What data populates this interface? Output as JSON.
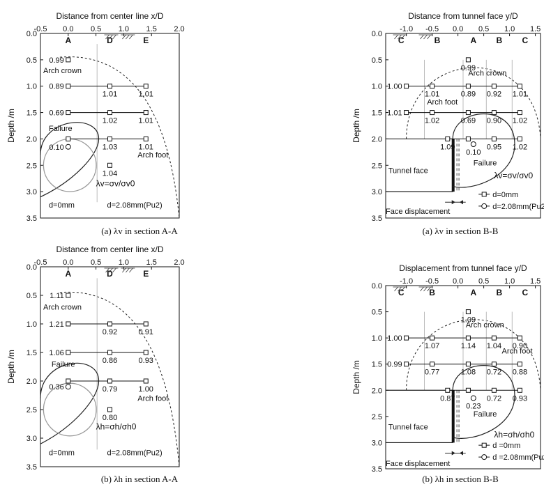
{
  "figure": {
    "captions": [
      "(a) λv in section A-A",
      "(a) λv in section B-B",
      "(b) λh in section A-A",
      "(b) λh in section B-B"
    ]
  },
  "chart_data": [
    {
      "type": "scatter",
      "panel": "a-AA",
      "caption": "(a) λv in section A-A",
      "top_axis_label": "Distance from center line x/D",
      "ylabel": "Depth /m",
      "xlim": [
        -0.5,
        2.0
      ],
      "ylim": [
        3.5,
        0.0
      ],
      "xticks": [
        "-0.5",
        "0.0",
        "0.5",
        "1.0",
        "1.5",
        "2.0"
      ],
      "yticks": [
        "0.0",
        "0.5",
        "1.0",
        "1.5",
        "2.0",
        "2.5",
        "3.0",
        "3.5"
      ],
      "y_inverted": true,
      "column_labels": [
        {
          "text": "A",
          "x": 0.0
        },
        {
          "text": "D",
          "x": 0.75
        },
        {
          "text": "E",
          "x": 1.4
        }
      ],
      "series": [
        {
          "name": "d=0mm",
          "marker": "square",
          "points": [
            {
              "x": 0.0,
              "y": 0.5,
              "label": "0.99"
            },
            {
              "x": 0.0,
              "y": 1.0,
              "label": "0.89"
            },
            {
              "x": 0.75,
              "y": 1.0,
              "label": "1.01"
            },
            {
              "x": 1.4,
              "y": 1.0,
              "label": "1.01"
            },
            {
              "x": 0.0,
              "y": 1.5,
              "label": "0.69"
            },
            {
              "x": 0.75,
              "y": 1.5,
              "label": "1.02"
            },
            {
              "x": 1.4,
              "y": 1.5,
              "label": "1.01"
            },
            {
              "x": 0.0,
              "y": 2.0,
              "label": ""
            },
            {
              "x": 0.75,
              "y": 2.0,
              "label": "1.03"
            },
            {
              "x": 1.4,
              "y": 2.0,
              "label": "1.01"
            },
            {
              "x": 0.75,
              "y": 2.5,
              "label": "1.04"
            }
          ]
        },
        {
          "name": "d=2.08mm(Pu2)",
          "marker": "circle",
          "points": [
            {
              "x": 0.0,
              "y": 2.15,
              "label": "0.10"
            }
          ]
        }
      ],
      "annotations": [
        "Arch crown",
        "Failure",
        "Arch foot"
      ],
      "formula": "λv=σv/σv0",
      "legend_items": [
        "d=0mm",
        "d=2.08mm(Pu2)"
      ]
    },
    {
      "type": "scatter",
      "panel": "a-BB",
      "caption": "(a) λv in section B-B",
      "top_axis_label": "Distance from tunnel face y/D",
      "ylabel": "Depth /m",
      "xlim": [
        -1.4,
        1.6
      ],
      "ylim": [
        3.5,
        0.0
      ],
      "xticks": [
        "-1.0",
        "-0.5",
        "0.0",
        "0.5",
        "1.0",
        "1.5"
      ],
      "yticks": [
        "0.0",
        "0.5",
        "1.0",
        "1.5",
        "2.0",
        "2.5",
        "3.0",
        "3.5"
      ],
      "y_inverted": true,
      "column_labels": [
        {
          "text": "C",
          "x": -1.1
        },
        {
          "text": "B",
          "x": -0.4
        },
        {
          "text": "A",
          "x": 0.3
        },
        {
          "text": "B",
          "x": 0.8
        },
        {
          "text": "C",
          "x": 1.3
        }
      ],
      "series": [
        {
          "name": "d=0mm",
          "marker": "square",
          "points": [
            {
              "x": 0.2,
              "y": 0.5,
              "label": "0.99"
            },
            {
              "x": -1.0,
              "y": 1.0,
              "label": "1.00"
            },
            {
              "x": -0.5,
              "y": 1.0,
              "label": "1.01"
            },
            {
              "x": 0.2,
              "y": 1.0,
              "label": "0.89"
            },
            {
              "x": 0.7,
              "y": 1.0,
              "label": "0.92"
            },
            {
              "x": 1.2,
              "y": 1.0,
              "label": "1.01"
            },
            {
              "x": -1.0,
              "y": 1.5,
              "label": "1.01"
            },
            {
              "x": -0.5,
              "y": 1.5,
              "label": "1.02"
            },
            {
              "x": 0.2,
              "y": 1.5,
              "label": "0.69"
            },
            {
              "x": 0.7,
              "y": 1.5,
              "label": "0.90"
            },
            {
              "x": 1.2,
              "y": 1.5,
              "label": "1.02"
            },
            {
              "x": -0.2,
              "y": 2.0,
              "label": "1.09"
            },
            {
              "x": 0.2,
              "y": 2.0,
              "label": ""
            },
            {
              "x": 0.7,
              "y": 2.0,
              "label": "0.95"
            },
            {
              "x": 1.2,
              "y": 2.0,
              "label": "1.02"
            }
          ]
        },
        {
          "name": "d=2.08mm(Pu2)",
          "marker": "circle",
          "points": [
            {
              "x": 0.3,
              "y": 2.1,
              "label": "0.10"
            }
          ]
        }
      ],
      "annotations": [
        "Arch crown",
        "Arch foot",
        "Failure",
        "Tunnel face",
        "Face displacement"
      ],
      "formula": "λv=σv/σv0",
      "legend_items": [
        "d=0mm",
        "d=2.08mm(Pu2)"
      ]
    },
    {
      "type": "scatter",
      "panel": "b-AA",
      "caption": "(b) λh in section A-A",
      "top_axis_label": "Distance from center line x/D",
      "ylabel": "Depth /m",
      "xlim": [
        -0.5,
        2.0
      ],
      "ylim": [
        3.5,
        0.0
      ],
      "xticks": [
        "-0.5",
        "0.0",
        "0.5",
        "1.0",
        "1.5",
        "2.0"
      ],
      "yticks": [
        "0.0",
        "0.5",
        "1.0",
        "1.5",
        "2.0",
        "2.5",
        "3.0",
        "3.5"
      ],
      "y_inverted": true,
      "column_labels": [
        {
          "text": "A",
          "x": 0.0
        },
        {
          "text": "D",
          "x": 0.75
        },
        {
          "text": "E",
          "x": 1.4
        }
      ],
      "series": [
        {
          "name": "d=0mm",
          "marker": "square",
          "points": [
            {
              "x": 0.0,
              "y": 0.5,
              "label": "1.11"
            },
            {
              "x": 0.0,
              "y": 1.0,
              "label": "1.21"
            },
            {
              "x": 0.75,
              "y": 1.0,
              "label": "0.92"
            },
            {
              "x": 1.4,
              "y": 1.0,
              "label": "0.91"
            },
            {
              "x": 0.0,
              "y": 1.5,
              "label": "1.06"
            },
            {
              "x": 0.75,
              "y": 1.5,
              "label": "0.86"
            },
            {
              "x": 1.4,
              "y": 1.5,
              "label": "0.93"
            },
            {
              "x": 0.0,
              "y": 2.0,
              "label": ""
            },
            {
              "x": 0.75,
              "y": 2.0,
              "label": "0.79"
            },
            {
              "x": 1.4,
              "y": 2.0,
              "label": "1.00"
            },
            {
              "x": 0.75,
              "y": 2.5,
              "label": "0.80"
            }
          ]
        },
        {
          "name": "d=2.08mm(Pu2)",
          "marker": "circle",
          "points": [
            {
              "x": 0.0,
              "y": 2.1,
              "label": "0.36"
            }
          ]
        }
      ],
      "annotations": [
        "Arch crown",
        "Failure",
        "Arch foot"
      ],
      "formula": "λh=σh/σh0",
      "legend_items": [
        "d=0mm",
        "d=2.08mm(Pu2)"
      ]
    },
    {
      "type": "scatter",
      "panel": "b-BB",
      "caption": "(b) λh in section B-B",
      "top_axis_label": "Displacement from tunnel face y/D",
      "ylabel": "Depth /m",
      "xlim": [
        -1.4,
        1.6
      ],
      "ylim": [
        3.5,
        0.0
      ],
      "xticks": [
        "-1.0",
        "-0.5",
        "0.0",
        "0.5",
        "1.0",
        "1.5"
      ],
      "yticks": [
        "0.0",
        "0.5",
        "1.0",
        "1.5",
        "2.0",
        "2.5",
        "3.0",
        "3.5"
      ],
      "y_inverted": true,
      "column_labels": [
        {
          "text": "C",
          "x": -1.1
        },
        {
          "text": "B",
          "x": -0.5
        },
        {
          "text": "A",
          "x": 0.3
        },
        {
          "text": "B",
          "x": 0.8
        },
        {
          "text": "C",
          "x": 1.3
        }
      ],
      "series": [
        {
          "name": "d=0mm",
          "marker": "square",
          "points": [
            {
              "x": 0.2,
              "y": 0.5,
              "label": "1.09"
            },
            {
              "x": -1.0,
              "y": 1.0,
              "label": "1.00"
            },
            {
              "x": -0.5,
              "y": 1.0,
              "label": "1.07"
            },
            {
              "x": 0.2,
              "y": 1.0,
              "label": "1.14"
            },
            {
              "x": 0.7,
              "y": 1.0,
              "label": "1.04"
            },
            {
              "x": 1.2,
              "y": 1.0,
              "label": "0.90"
            },
            {
              "x": -1.0,
              "y": 1.5,
              "label": "0.99"
            },
            {
              "x": -0.5,
              "y": 1.5,
              "label": "0.77"
            },
            {
              "x": 0.2,
              "y": 1.5,
              "label": "1.08"
            },
            {
              "x": 0.7,
              "y": 1.5,
              "label": "0.72"
            },
            {
              "x": 1.2,
              "y": 1.5,
              "label": "0.88"
            },
            {
              "x": -0.2,
              "y": 2.0,
              "label": "0.87"
            },
            {
              "x": 0.2,
              "y": 2.0,
              "label": ""
            },
            {
              "x": 0.7,
              "y": 2.0,
              "label": "0.72"
            },
            {
              "x": 1.2,
              "y": 2.0,
              "label": "0.93"
            }
          ]
        },
        {
          "name": "d=2.08mm(Pu2)",
          "marker": "circle",
          "points": [
            {
              "x": 0.3,
              "y": 2.15,
              "label": "0.23"
            }
          ]
        }
      ],
      "annotations": [
        "Arch crown",
        "Arch foot",
        "Failure",
        "Tunnel face",
        "Face displacement"
      ],
      "formula": "λh=σh/σh0",
      "legend_items": [
        "d =0mm",
        "d =2.08mm(Pu2)"
      ]
    }
  ]
}
